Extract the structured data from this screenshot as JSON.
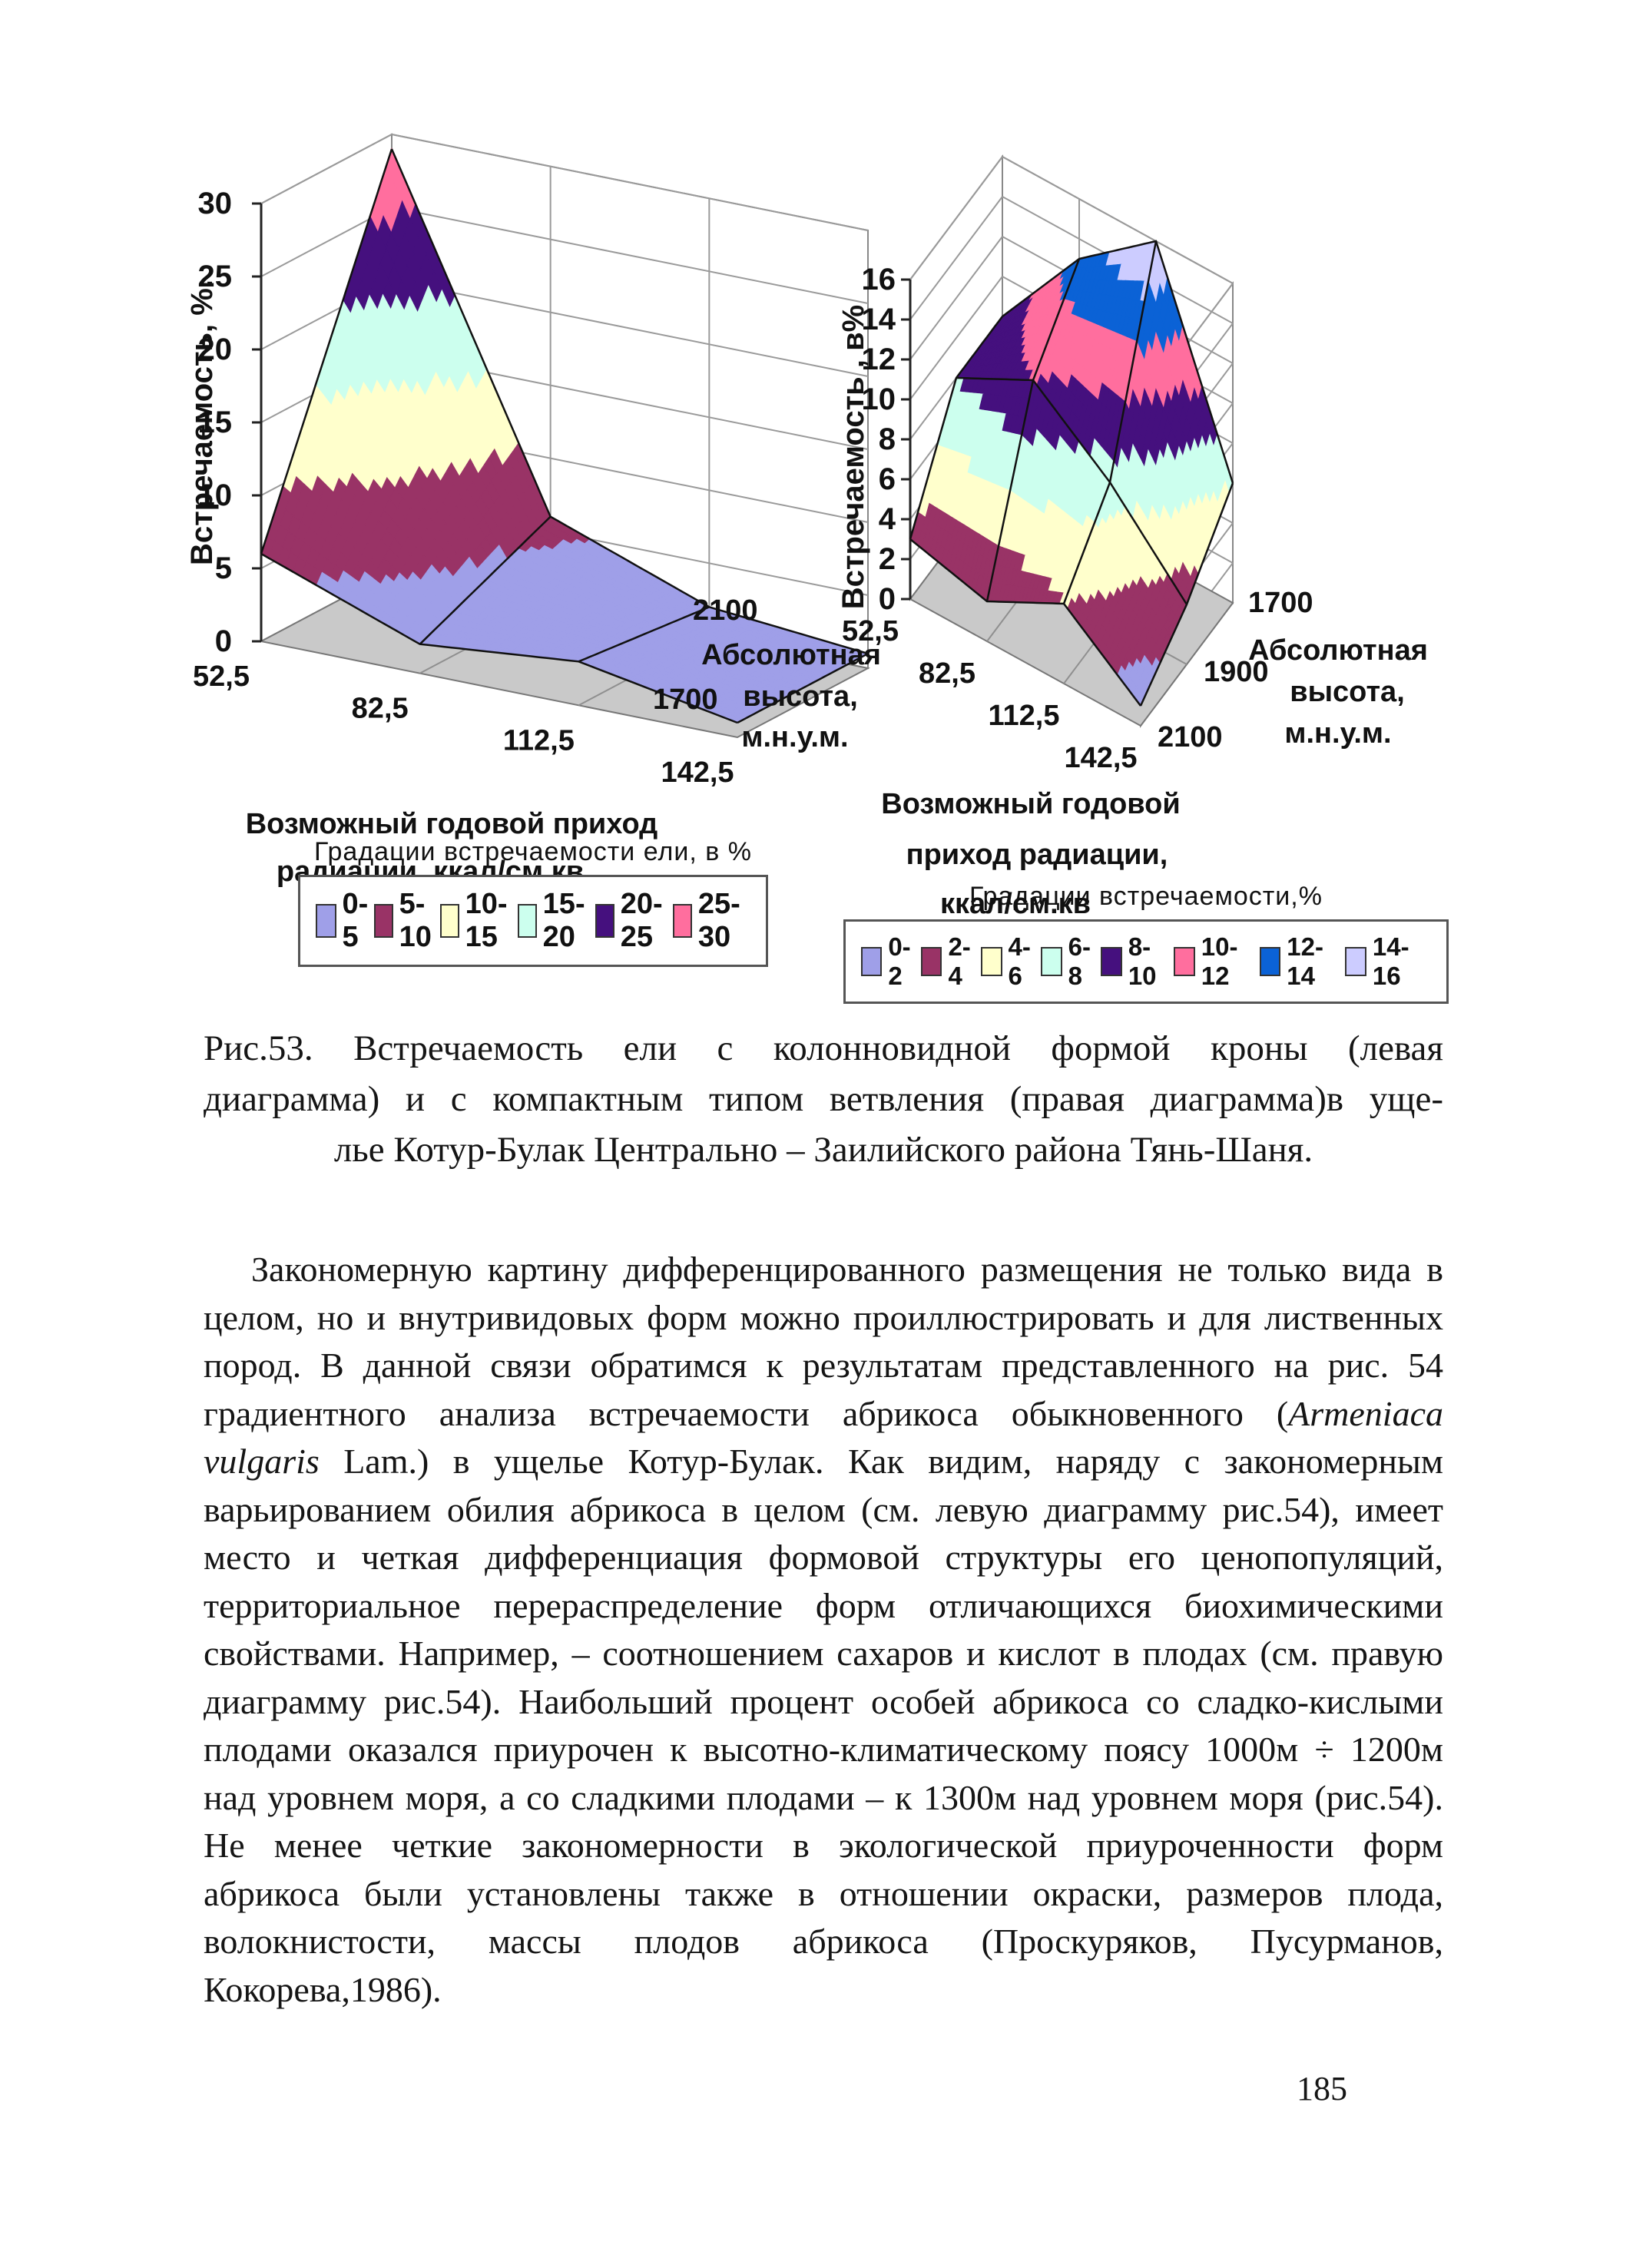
{
  "page": {
    "number": "185"
  },
  "figure": {
    "caption_line1": "Рис.53. Встречаемость ели с колонновидной формой кроны (левая",
    "caption_line2": "диаграмма) и с компактным типом ветвления (правая диаграмма)в уще-",
    "caption_line3": "лье Котур-Булак Центрально – Заилийского района Тянь-Шаня."
  },
  "body": {
    "pre_italic": "Закономерную картину дифференцированного размещения не только вида в целом, но и внутривидовых форм можно проиллюстрировать и для лиственных пород. В данной связи обратимся к результатам представленного на рис. 54 градиентного анализа встречаемости абрикоса обыкновенного (",
    "italic": "Armeniaca vulgaris",
    "post_italic": " Lam.) в ущелье Котур-Булак. Как видим, наряду с закономерным варьированием обилия абрикоса в целом (см. левую диаграмму рис.54), имеет место и четкая дифференциация формовой структуры его ценопопуляций, территориальное перераспределение форм отличающихся биохимическими свойствами.  Например, – соотношением сахаров и кислот в плодах (см. правую диаграмму рис.54). Наибольший процент особей абрикоса со сладко-кислыми плодами оказался приурочен к высотно-климатическому поясу 1000м ÷ 1200м над уровнем моря, а со сладкими плодами – к 1300м над уровнем моря (рис.54). Не менее четкие закономерности в экологической приуроченности форм абрикоса были установлены также в отношении окраски, размеров плода, волокнистости, массы плодов абрикоса (Проскуряков, Пусурманов, Кокорева,1986)."
  },
  "chart_data": [
    {
      "type": "surface",
      "name": "spruce-columnar-crown",
      "ylabel": "Встречаемость, %.",
      "xlabel_lines": [
        "Возможный годовой приход",
        "радиации, ккал/см.кв"
      ],
      "zlabel_lines": [
        "Абсолютная",
        "высота,",
        "м.н.у.м."
      ],
      "categories": [
        "52,5",
        "82,5",
        "112,5",
        "142,5"
      ],
      "series": [
        {
          "name": "2100",
          "values": [
            29,
            6,
            2,
            1
          ]
        },
        {
          "name": "1700",
          "values": [
            6,
            2,
            3,
            1
          ]
        }
      ],
      "ylim": [
        0,
        30
      ],
      "yticks": [
        0,
        5,
        10,
        15,
        20,
        25,
        30
      ],
      "legend_title": "Градации встречаемости ели, в %",
      "legend": [
        {
          "label": "0-5",
          "color": "#9F9FE8"
        },
        {
          "label": "5-10",
          "color": "#993366"
        },
        {
          "label": "10-15",
          "color": "#FFFFCC"
        },
        {
          "label": "15-20",
          "color": "#CCFFEE"
        },
        {
          "label": "20-25",
          "color": "#45107E"
        },
        {
          "label": "25-30",
          "color": "#FF6E9E"
        }
      ],
      "floor_color": "#C9C9C9",
      "grid": true
    },
    {
      "type": "surface",
      "name": "spruce-compact-branching",
      "ylabel": "Встречаемость , в%",
      "xlabel_lines": [
        "Возможный годовой",
        "приход радиации,",
        "ккал/см.кв"
      ],
      "zlabel_lines": [
        "Абсолютная",
        "высота,",
        "м.н.у.м."
      ],
      "categories": [
        "52,5",
        "82,5",
        "112,5",
        "142,5"
      ],
      "series": [
        {
          "name": "1700",
          "values": [
            8,
            13,
            16,
            6
          ]
        },
        {
          "name": "1900",
          "values": [
            8,
            10,
            7,
            3
          ]
        },
        {
          "name": "2100",
          "values": [
            3,
            2,
            4,
            1
          ]
        }
      ],
      "ylim": [
        0,
        16
      ],
      "yticks": [
        0,
        2,
        4,
        6,
        8,
        10,
        12,
        14,
        16
      ],
      "legend_title": "Градации встречаемости,%",
      "legend": [
        {
          "label": "0-2",
          "color": "#9F9FE8"
        },
        {
          "label": "2-4",
          "color": "#993366"
        },
        {
          "label": "4-6",
          "color": "#FFFFCC"
        },
        {
          "label": "6-8",
          "color": "#CCFFEE"
        },
        {
          "label": "8-10",
          "color": "#45107E"
        },
        {
          "label": "10-12",
          "color": "#FF6E9E"
        },
        {
          "label": "12-14",
          "color": "#0B62D6"
        },
        {
          "label": "14-16",
          "color": "#CCCCFF"
        }
      ],
      "floor_color": "#C9C9C9",
      "grid": true
    }
  ]
}
